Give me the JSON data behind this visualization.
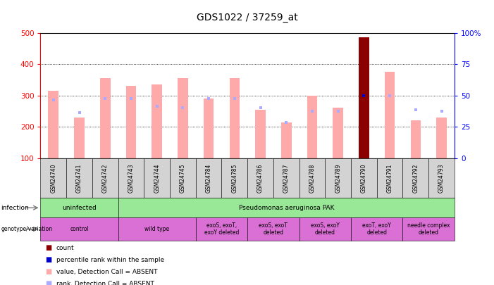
{
  "title": "GDS1022 / 37259_at",
  "samples": [
    "GSM24740",
    "GSM24741",
    "GSM24742",
    "GSM24743",
    "GSM24744",
    "GSM24745",
    "GSM24784",
    "GSM24785",
    "GSM24786",
    "GSM24787",
    "GSM24788",
    "GSM24789",
    "GSM24790",
    "GSM24791",
    "GSM24792",
    "GSM24793"
  ],
  "bar_values": [
    315,
    230,
    355,
    330,
    335,
    355,
    290,
    355,
    255,
    215,
    300,
    260,
    485,
    375,
    220,
    230
  ],
  "bar_colors": [
    "#ffaaaa",
    "#ffaaaa",
    "#ffaaaa",
    "#ffaaaa",
    "#ffaaaa",
    "#ffaaaa",
    "#ffaaaa",
    "#ffaaaa",
    "#ffaaaa",
    "#ffaaaa",
    "#ffaaaa",
    "#ffaaaa",
    "#8b0000",
    "#ffaaaa",
    "#ffaaaa",
    "#ffaaaa"
  ],
  "rank_values": [
    285,
    245,
    290,
    290,
    265,
    260,
    290,
    290,
    260,
    215,
    250,
    250,
    300,
    300,
    255,
    250
  ],
  "rank_colors": [
    "#aaaaff",
    "#aaaaff",
    "#aaaaff",
    "#aaaaff",
    "#aaaaff",
    "#aaaaff",
    "#aaaaff",
    "#aaaaff",
    "#aaaaff",
    "#aaaaff",
    "#aaaaff",
    "#aaaaff",
    "#0000cc",
    "#aaaaff",
    "#aaaaff",
    "#aaaaff"
  ],
  "ymin": 100,
  "ymax": 500,
  "yticks": [
    100,
    200,
    300,
    400,
    500
  ],
  "ytick_labels": [
    "100",
    "200",
    "300",
    "400",
    "500"
  ],
  "y2min": 0,
  "y2max": 100,
  "y2ticks": [
    0,
    25,
    50,
    75,
    100
  ],
  "y2tick_labels": [
    "0",
    "25",
    "50",
    "75",
    "100%"
  ],
  "grid_values": [
    200,
    300,
    400
  ],
  "inf_specs": [
    {
      "label": "uninfected",
      "start": 0,
      "end": 3,
      "color": "#98e898"
    },
    {
      "label": "Pseudomonas aeruginosa PAK",
      "start": 3,
      "end": 16,
      "color": "#98e898"
    }
  ],
  "gen_specs": [
    {
      "label": "control",
      "start": 0,
      "end": 3,
      "color": "#da70d6"
    },
    {
      "label": "wild type",
      "start": 3,
      "end": 6,
      "color": "#da70d6"
    },
    {
      "label": "exoS, exoT,\nexoY deleted",
      "start": 6,
      "end": 8,
      "color": "#da70d6"
    },
    {
      "label": "exoS, exoT\ndeleted",
      "start": 8,
      "end": 10,
      "color": "#da70d6"
    },
    {
      "label": "exoS, exoY\ndeleted",
      "start": 10,
      "end": 12,
      "color": "#da70d6"
    },
    {
      "label": "exoT, exoY\ndeleted",
      "start": 12,
      "end": 14,
      "color": "#da70d6"
    },
    {
      "label": "needle complex\ndeleted",
      "start": 14,
      "end": 16,
      "color": "#da70d6"
    }
  ],
  "legend_items": [
    {
      "label": "count",
      "color": "#8b0000"
    },
    {
      "label": "percentile rank within the sample",
      "color": "#0000cc"
    },
    {
      "label": "value, Detection Call = ABSENT",
      "color": "#ffaaaa"
    },
    {
      "label": "rank, Detection Call = ABSENT",
      "color": "#aaaaff"
    }
  ],
  "bar_width": 0.4
}
